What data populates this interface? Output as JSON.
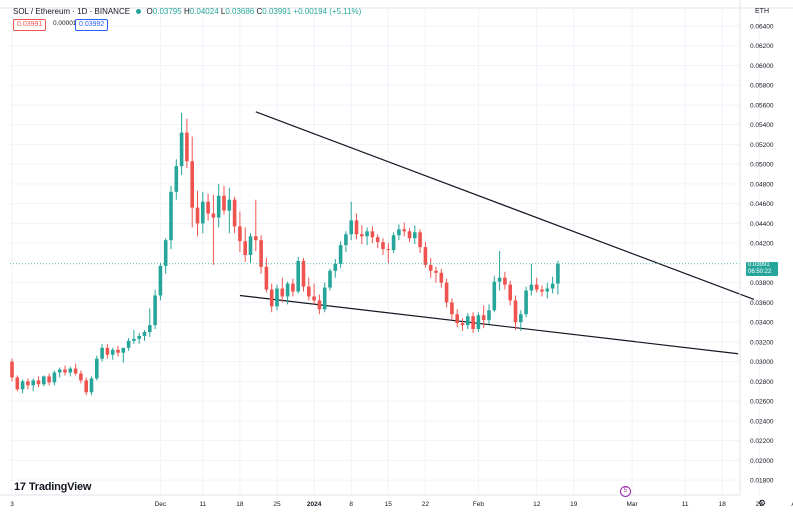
{
  "header": {
    "symbol": "SOL / Ethereum · 1D · BINANCE",
    "open_label": "O",
    "open": "0.03795",
    "high_label": "H",
    "high": "0.04024",
    "low_label": "L",
    "low": "0.03686",
    "close_label": "C",
    "close": "0.03991",
    "change": "+0.00194 (+5.11%)",
    "sell_price": "0.03991",
    "spread": "0.00001",
    "buy_price": "0.03992",
    "currency": "ETH"
  },
  "branding": {
    "logo_text": "TradingView",
    "logo_mark": "17"
  },
  "last_price_tag": {
    "price": "0.03991",
    "countdown": "06:50:22"
  },
  "event_marker": {
    "label": "5"
  },
  "colors": {
    "up": "#26a69a",
    "down": "#ef5350",
    "trendline": "#131722",
    "grid": "#f0f3fa"
  },
  "icons": {
    "settings": "gear-icon"
  },
  "chart_data": {
    "type": "candlestick",
    "title": "SOL / Ethereum · 1D · BINANCE",
    "ylim": [
      0.0178,
      0.0651
    ],
    "y_ticks": [
      "0.06400",
      "0.06200",
      "0.06000",
      "0.05800",
      "0.05600",
      "0.05400",
      "0.05200",
      "0.05000",
      "0.04800",
      "0.04600",
      "0.04400",
      "0.04200",
      "0.03800",
      "0.03600",
      "0.03400",
      "0.03200",
      "0.03000",
      "0.02800",
      "0.02600",
      "0.02400",
      "0.02200",
      "0.02000",
      "0.01800"
    ],
    "x_ticks": [
      {
        "label": "3",
        "day": 0
      },
      {
        "label": "Dec",
        "day": 28
      },
      {
        "label": "11",
        "day": 36
      },
      {
        "label": "18",
        "day": 43
      },
      {
        "label": "25",
        "day": 50
      },
      {
        "label": "2024",
        "day": 57
      },
      {
        "label": "8",
        "day": 64
      },
      {
        "label": "15",
        "day": 71
      },
      {
        "label": "22",
        "day": 78
      },
      {
        "label": "Feb",
        "day": 88
      },
      {
        "label": "12",
        "day": 99
      },
      {
        "label": "19",
        "day": 106
      },
      {
        "label": "Mar",
        "day": 117
      },
      {
        "label": "11",
        "day": 127
      },
      {
        "label": "18",
        "day": 134
      },
      {
        "label": "25",
        "day": 141
      },
      {
        "label": "Apr",
        "day": 148
      }
    ],
    "candles": [
      [
        0.03,
        0.0303,
        0.028,
        0.0284
      ],
      [
        0.0284,
        0.0286,
        0.027,
        0.0272
      ],
      [
        0.0272,
        0.0282,
        0.0268,
        0.028
      ],
      [
        0.028,
        0.0283,
        0.0272,
        0.0276
      ],
      [
        0.0276,
        0.0283,
        0.027,
        0.0281
      ],
      [
        0.0281,
        0.0285,
        0.0274,
        0.0277
      ],
      [
        0.0277,
        0.0286,
        0.0275,
        0.0285
      ],
      [
        0.0285,
        0.0288,
        0.0276,
        0.0279
      ],
      [
        0.0279,
        0.0291,
        0.0276,
        0.0289
      ],
      [
        0.0289,
        0.0294,
        0.0284,
        0.0292
      ],
      [
        0.0292,
        0.0296,
        0.0286,
        0.0289
      ],
      [
        0.0289,
        0.0295,
        0.0285,
        0.0293
      ],
      [
        0.0293,
        0.0298,
        0.0286,
        0.0288
      ],
      [
        0.0288,
        0.0291,
        0.0278,
        0.0281
      ],
      [
        0.0281,
        0.0284,
        0.0266,
        0.0269
      ],
      [
        0.0269,
        0.0285,
        0.0266,
        0.0283
      ],
      [
        0.0283,
        0.0306,
        0.0281,
        0.0303
      ],
      [
        0.0303,
        0.0318,
        0.03,
        0.0314
      ],
      [
        0.0314,
        0.0318,
        0.0303,
        0.0307
      ],
      [
        0.0307,
        0.0314,
        0.0302,
        0.0312
      ],
      [
        0.0312,
        0.0316,
        0.0305,
        0.0309
      ],
      [
        0.0309,
        0.0313,
        0.0299,
        0.0314
      ],
      [
        0.0314,
        0.0324,
        0.0311,
        0.0321
      ],
      [
        0.0321,
        0.0332,
        0.0318,
        0.0323
      ],
      [
        0.0323,
        0.0329,
        0.0318,
        0.0326
      ],
      [
        0.0326,
        0.0332,
        0.0321,
        0.033
      ],
      [
        0.033,
        0.0354,
        0.0325,
        0.0337
      ],
      [
        0.0337,
        0.0373,
        0.0333,
        0.0367
      ],
      [
        0.0367,
        0.04,
        0.0362,
        0.0397
      ],
      [
        0.0397,
        0.0425,
        0.0389,
        0.0423
      ],
      [
        0.0423,
        0.0478,
        0.0414,
        0.0472
      ],
      [
        0.0472,
        0.0505,
        0.0464,
        0.0498
      ],
      [
        0.0498,
        0.0552,
        0.0489,
        0.0532
      ],
      [
        0.0532,
        0.0546,
        0.0496,
        0.0503
      ],
      [
        0.0503,
        0.0528,
        0.0436,
        0.0456
      ],
      [
        0.0456,
        0.0473,
        0.0427,
        0.044
      ],
      [
        0.044,
        0.0472,
        0.043,
        0.0462
      ],
      [
        0.0462,
        0.047,
        0.0443,
        0.045
      ],
      [
        0.045,
        0.0469,
        0.0398,
        0.0446
      ],
      [
        0.0446,
        0.048,
        0.0436,
        0.0468
      ],
      [
        0.0468,
        0.0478,
        0.0449,
        0.0453
      ],
      [
        0.0453,
        0.0476,
        0.043,
        0.0464
      ],
      [
        0.0464,
        0.0467,
        0.043,
        0.0437
      ],
      [
        0.0437,
        0.0452,
        0.0411,
        0.0422
      ],
      [
        0.0422,
        0.0436,
        0.0401,
        0.0408
      ],
      [
        0.0408,
        0.043,
        0.04,
        0.0427
      ],
      [
        0.0427,
        0.0464,
        0.0412,
        0.0423
      ],
      [
        0.0423,
        0.0428,
        0.0389,
        0.0396
      ],
      [
        0.0396,
        0.0405,
        0.037,
        0.0373
      ],
      [
        0.0373,
        0.0379,
        0.035,
        0.0356
      ],
      [
        0.0356,
        0.0378,
        0.0352,
        0.0374
      ],
      [
        0.0374,
        0.0385,
        0.036,
        0.0366
      ],
      [
        0.0366,
        0.0381,
        0.0358,
        0.0379
      ],
      [
        0.0379,
        0.0384,
        0.0366,
        0.0371
      ],
      [
        0.0371,
        0.0406,
        0.0369,
        0.0402
      ],
      [
        0.0402,
        0.0405,
        0.0371,
        0.0376
      ],
      [
        0.0376,
        0.0385,
        0.0362,
        0.0366
      ],
      [
        0.0366,
        0.0379,
        0.0358,
        0.0362
      ],
      [
        0.0362,
        0.0368,
        0.0348,
        0.0353
      ],
      [
        0.0353,
        0.038,
        0.035,
        0.0375
      ],
      [
        0.0375,
        0.0394,
        0.0372,
        0.0392
      ],
      [
        0.0392,
        0.0404,
        0.0385,
        0.0399
      ],
      [
        0.0399,
        0.0422,
        0.0395,
        0.0418
      ],
      [
        0.0418,
        0.0432,
        0.0411,
        0.0429
      ],
      [
        0.0429,
        0.0462,
        0.0423,
        0.0443
      ],
      [
        0.0443,
        0.045,
        0.0424,
        0.0429
      ],
      [
        0.0429,
        0.0438,
        0.0419,
        0.0427
      ],
      [
        0.0427,
        0.0436,
        0.0418,
        0.0432
      ],
      [
        0.0432,
        0.0437,
        0.042,
        0.0426
      ],
      [
        0.0426,
        0.0429,
        0.0415,
        0.0421
      ],
      [
        0.0421,
        0.0425,
        0.0408,
        0.0414
      ],
      [
        0.0414,
        0.042,
        0.04,
        0.0413
      ],
      [
        0.0413,
        0.0431,
        0.041,
        0.0428
      ],
      [
        0.0428,
        0.0439,
        0.0423,
        0.0434
      ],
      [
        0.0434,
        0.0441,
        0.0427,
        0.0432
      ],
      [
        0.0432,
        0.0435,
        0.0421,
        0.0425
      ],
      [
        0.0425,
        0.0438,
        0.0419,
        0.0431
      ],
      [
        0.0431,
        0.0434,
        0.041,
        0.0416
      ],
      [
        0.0416,
        0.0421,
        0.0395,
        0.0398
      ],
      [
        0.0398,
        0.0405,
        0.0385,
        0.0392
      ],
      [
        0.0392,
        0.0396,
        0.038,
        0.039
      ],
      [
        0.039,
        0.0394,
        0.0375,
        0.038
      ],
      [
        0.038,
        0.0384,
        0.0355,
        0.036
      ],
      [
        0.036,
        0.0364,
        0.0343,
        0.0348
      ],
      [
        0.0348,
        0.0353,
        0.0335,
        0.0339
      ],
      [
        0.0339,
        0.0344,
        0.0331,
        0.0337
      ],
      [
        0.0337,
        0.0349,
        0.0333,
        0.0346
      ],
      [
        0.0346,
        0.035,
        0.0329,
        0.0333
      ],
      [
        0.0333,
        0.035,
        0.033,
        0.0347
      ],
      [
        0.0347,
        0.0357,
        0.0334,
        0.0342
      ],
      [
        0.0342,
        0.0358,
        0.0338,
        0.0352
      ],
      [
        0.0352,
        0.0387,
        0.035,
        0.0381
      ],
      [
        0.0381,
        0.0412,
        0.0372,
        0.0385
      ],
      [
        0.0385,
        0.0391,
        0.0373,
        0.0378
      ],
      [
        0.0378,
        0.0382,
        0.0357,
        0.0362
      ],
      [
        0.0362,
        0.0367,
        0.0332,
        0.034
      ],
      [
        0.034,
        0.0352,
        0.0331,
        0.0348
      ],
      [
        0.0348,
        0.0376,
        0.0345,
        0.0372
      ],
      [
        0.0372,
        0.0399,
        0.0367,
        0.0378
      ],
      [
        0.0378,
        0.0385,
        0.037,
        0.0373
      ],
      [
        0.0373,
        0.0377,
        0.0366,
        0.0371
      ],
      [
        0.0371,
        0.038,
        0.0364,
        0.0374
      ],
      [
        0.0374,
        0.0386,
        0.0369,
        0.0379
      ],
      [
        0.0379,
        0.0402,
        0.0368,
        0.0399
      ]
    ],
    "candle_start_day": 0,
    "trendlines": [
      {
        "name": "upper",
        "from": {
          "day": 46,
          "price": 0.0553
        },
        "to": {
          "day": 140,
          "price": 0.0363
        }
      },
      {
        "name": "lower",
        "from": {
          "day": 43,
          "price": 0.0367
        },
        "to": {
          "day": 137,
          "price": 0.0308
        }
      }
    ],
    "last_price_line": 0.03991
  }
}
